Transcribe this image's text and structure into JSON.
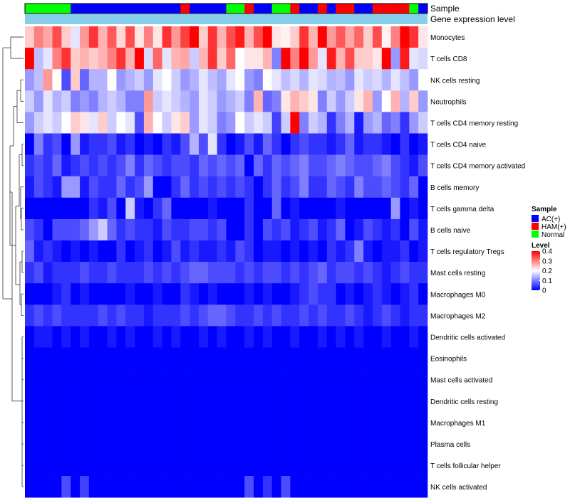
{
  "chart_data": {
    "type": "heatmap",
    "title": "",
    "annotation_tracks": [
      {
        "name": "Sample",
        "label": "Sample"
      },
      {
        "name": "Gene expression level",
        "label": "Gene expression level"
      }
    ],
    "sample_groups": [
      "N",
      "N",
      "N",
      "N",
      "N",
      "A",
      "A",
      "A",
      "A",
      "A",
      "A",
      "A",
      "A",
      "A",
      "A",
      "A",
      "A",
      "H",
      "A",
      "A",
      "A",
      "A",
      "N",
      "N",
      "H",
      "A",
      "A",
      "N",
      "N",
      "H",
      "A",
      "A",
      "H",
      "A",
      "H",
      "H",
      "A",
      "A",
      "H",
      "H",
      "H",
      "H",
      "N",
      "A"
    ],
    "rows": [
      "Monocytes",
      "T cells CD8",
      "NK cells resting",
      "Neutrophils",
      "T cells CD4 memory resting",
      "T cells CD4 naive",
      "T cells CD4 memory activated",
      "B cells memory",
      "T cells gamma delta",
      "B cells naive",
      "T cells regulatory  Tregs",
      "Mast cells resting",
      "Macrophages M0",
      "Macrophages M2",
      "Dendritic cells activated",
      "Eosinophils",
      "Mast cells activated",
      "Dendritic cells resting",
      "Macrophages M1",
      "Plasma cells",
      "T cells follicular helper",
      "NK cells activated"
    ],
    "values": [
      [
        0.24,
        0.3,
        0.27,
        0.34,
        0.24,
        0.18,
        0.28,
        0.36,
        0.26,
        0.33,
        0.23,
        0.34,
        0.22,
        0.3,
        0.22,
        0.36,
        0.28,
        0.35,
        0.4,
        0.24,
        0.36,
        0.26,
        0.34,
        0.38,
        0.26,
        0.34,
        0.4,
        0.22,
        0.21,
        0.24,
        0.36,
        0.26,
        0.42,
        0.28,
        0.33,
        0.27,
        0.32,
        0.24,
        0.34,
        0.21,
        0.3,
        0.42,
        0.36,
        0.22
      ],
      [
        0.42,
        0.15,
        0.18,
        0.3,
        0.36,
        0.24,
        0.26,
        0.24,
        0.26,
        0.3,
        0.36,
        0.26,
        0.4,
        0.17,
        0.32,
        0.18,
        0.26,
        0.27,
        0.16,
        0.26,
        0.36,
        0.24,
        0.32,
        0.2,
        0.22,
        0.22,
        0.26,
        0.1,
        0.4,
        0.3,
        0.4,
        0.28,
        0.18,
        0.38,
        0.26,
        0.34,
        0.24,
        0.24,
        0.22,
        0.4,
        0.12,
        0.38,
        0.18,
        0.17
      ],
      [
        0.12,
        0.15,
        0.28,
        0.2,
        0.06,
        0.24,
        0.08,
        0.14,
        0.14,
        0.2,
        0.12,
        0.14,
        0.16,
        0.12,
        0.18,
        0.2,
        0.16,
        0.12,
        0.14,
        0.18,
        0.15,
        0.13,
        0.18,
        0.2,
        0.12,
        0.1,
        0.2,
        0.18,
        0.15,
        0.17,
        0.14,
        0.18,
        0.17,
        0.14,
        0.15,
        0.12,
        0.18,
        0.16,
        0.17,
        0.14,
        0.18,
        0.15,
        0.12,
        0.2
      ],
      [
        0.16,
        0.12,
        0.18,
        0.14,
        0.16,
        0.1,
        0.12,
        0.1,
        0.14,
        0.16,
        0.14,
        0.1,
        0.1,
        0.28,
        0.16,
        0.18,
        0.16,
        0.14,
        0.12,
        0.18,
        0.16,
        0.12,
        0.14,
        0.16,
        0.1,
        0.26,
        0.08,
        0.1,
        0.22,
        0.26,
        0.24,
        0.22,
        0.1,
        0.16,
        0.12,
        0.16,
        0.22,
        0.26,
        0.12,
        0.2,
        0.26,
        0.14,
        0.24,
        0.12
      ],
      [
        0.12,
        0.16,
        0.18,
        0.16,
        0.2,
        0.24,
        0.22,
        0.18,
        0.24,
        0.16,
        0.2,
        0.18,
        0.06,
        0.26,
        0.2,
        0.16,
        0.22,
        0.24,
        0.12,
        0.18,
        0.16,
        0.1,
        0.12,
        0.2,
        0.16,
        0.18,
        0.16,
        0.05,
        0.16,
        0.42,
        0.1,
        0.16,
        0.14,
        0.04,
        0.1,
        0.14,
        0.02,
        0.12,
        0.14,
        0.08,
        0.1,
        0.04,
        0.12,
        0.16
      ],
      [
        0.0,
        0.1,
        0.04,
        0.06,
        0.0,
        0.12,
        0.02,
        0.04,
        0.04,
        0.06,
        0.02,
        0.04,
        0.0,
        0.02,
        0.0,
        0.04,
        0.02,
        0.06,
        0.14,
        0.06,
        0.18,
        0.04,
        0.0,
        0.02,
        0.06,
        0.02,
        0.08,
        0.04,
        0.0,
        0.04,
        0.06,
        0.04,
        0.04,
        0.02,
        0.04,
        0.08,
        0.02,
        0.04,
        0.04,
        0.02,
        0.0,
        0.04,
        0.0,
        0.02
      ],
      [
        0.04,
        0.06,
        0.04,
        0.08,
        0.02,
        0.04,
        0.06,
        0.04,
        0.06,
        0.04,
        0.06,
        0.1,
        0.04,
        0.08,
        0.06,
        0.04,
        0.06,
        0.06,
        0.04,
        0.08,
        0.06,
        0.08,
        0.06,
        0.08,
        0.0,
        0.08,
        0.04,
        0.08,
        0.06,
        0.08,
        0.1,
        0.06,
        0.06,
        0.08,
        0.1,
        0.08,
        0.06,
        0.06,
        0.08,
        0.1,
        0.06,
        0.04,
        0.02,
        0.06
      ],
      [
        0.02,
        0.06,
        0.04,
        0.02,
        0.12,
        0.12,
        0.02,
        0.06,
        0.04,
        0.04,
        0.08,
        0.04,
        0.06,
        0.12,
        0.0,
        0.0,
        0.04,
        0.08,
        0.04,
        0.06,
        0.04,
        0.06,
        0.04,
        0.06,
        0.04,
        0.0,
        0.04,
        0.08,
        0.04,
        0.06,
        0.1,
        0.04,
        0.04,
        0.08,
        0.06,
        0.04,
        0.1,
        0.06,
        0.06,
        0.08,
        0.06,
        0.04,
        0.08,
        0.0
      ],
      [
        0.0,
        0.0,
        0.0,
        0.0,
        0.0,
        0.0,
        0.0,
        0.04,
        0.02,
        0.06,
        0.0,
        0.16,
        0.02,
        0.0,
        0.04,
        0.08,
        0.0,
        0.0,
        0.0,
        0.0,
        0.02,
        0.0,
        0.0,
        0.0,
        0.04,
        0.0,
        0.0,
        0.08,
        0.0,
        0.02,
        0.0,
        0.0,
        0.0,
        0.0,
        0.02,
        0.0,
        0.0,
        0.0,
        0.0,
        0.0,
        0.12,
        0.0,
        0.02,
        0.0
      ],
      [
        0.06,
        0.04,
        0.0,
        0.06,
        0.06,
        0.06,
        0.08,
        0.12,
        0.16,
        0.08,
        0.04,
        0.06,
        0.04,
        0.04,
        0.02,
        0.06,
        0.04,
        0.04,
        0.06,
        0.06,
        0.04,
        0.06,
        0.0,
        0.0,
        0.04,
        0.0,
        0.06,
        0.04,
        0.06,
        0.02,
        0.04,
        0.06,
        0.02,
        0.04,
        0.08,
        0.0,
        0.02,
        0.06,
        0.04,
        0.02,
        0.04,
        0.0,
        0.06,
        0.02
      ],
      [
        0.08,
        0.02,
        0.04,
        0.02,
        0.0,
        0.02,
        0.0,
        0.02,
        0.0,
        0.0,
        0.04,
        0.0,
        0.02,
        0.04,
        0.0,
        0.02,
        0.06,
        0.02,
        0.04,
        0.02,
        0.02,
        0.04,
        0.02,
        0.06,
        0.04,
        0.0,
        0.02,
        0.02,
        0.0,
        0.02,
        0.0,
        0.02,
        0.0,
        0.04,
        0.02,
        0.04,
        0.1,
        0.02,
        0.0,
        0.02,
        0.02,
        0.04,
        0.0,
        0.02
      ],
      [
        0.04,
        0.06,
        0.02,
        0.04,
        0.04,
        0.04,
        0.06,
        0.04,
        0.04,
        0.06,
        0.04,
        0.04,
        0.04,
        0.06,
        0.04,
        0.06,
        0.04,
        0.06,
        0.08,
        0.08,
        0.06,
        0.06,
        0.06,
        0.04,
        0.06,
        0.04,
        0.06,
        0.06,
        0.04,
        0.06,
        0.04,
        0.06,
        0.08,
        0.04,
        0.06,
        0.06,
        0.04,
        0.06,
        0.04,
        0.02,
        0.04,
        0.06,
        0.04,
        0.04
      ],
      [
        0.0,
        0.0,
        0.0,
        0.02,
        0.04,
        0.0,
        0.02,
        0.0,
        0.0,
        0.0,
        0.0,
        0.02,
        0.0,
        0.0,
        0.02,
        0.0,
        0.0,
        0.04,
        0.02,
        0.0,
        0.02,
        0.0,
        0.0,
        0.0,
        0.02,
        0.0,
        0.02,
        0.0,
        0.0,
        0.02,
        0.04,
        0.06,
        0.04,
        0.04,
        0.0,
        0.02,
        0.0,
        0.02,
        0.04,
        0.02,
        0.0,
        0.02,
        0.04,
        0.0
      ],
      [
        0.04,
        0.06,
        0.04,
        0.06,
        0.04,
        0.04,
        0.04,
        0.04,
        0.06,
        0.04,
        0.06,
        0.04,
        0.04,
        0.02,
        0.04,
        0.04,
        0.04,
        0.06,
        0.04,
        0.06,
        0.08,
        0.08,
        0.06,
        0.04,
        0.04,
        0.06,
        0.04,
        0.06,
        0.04,
        0.04,
        0.06,
        0.04,
        0.06,
        0.04,
        0.04,
        0.06,
        0.04,
        0.02,
        0.04,
        0.06,
        0.04,
        0.02,
        0.04,
        0.04
      ],
      [
        0.0,
        0.02,
        0.02,
        0.0,
        0.02,
        0.0,
        0.02,
        0.0,
        0.0,
        0.02,
        0.0,
        0.02,
        0.0,
        0.0,
        0.02,
        0.0,
        0.02,
        0.0,
        0.0,
        0.02,
        0.0,
        0.02,
        0.0,
        0.0,
        0.02,
        0.0,
        0.02,
        0.0,
        0.0,
        0.02,
        0.0,
        0.0,
        0.02,
        0.0,
        0.02,
        0.0,
        0.02,
        0.0,
        0.0,
        0.02,
        0.0,
        0.0,
        0.02,
        0.0
      ],
      [
        0,
        0,
        0,
        0,
        0,
        0,
        0,
        0,
        0,
        0,
        0,
        0,
        0,
        0,
        0,
        0,
        0,
        0,
        0,
        0,
        0,
        0,
        0,
        0,
        0,
        0,
        0,
        0,
        0,
        0,
        0,
        0,
        0,
        0,
        0,
        0,
        0,
        0,
        0,
        0,
        0,
        0,
        0,
        0
      ],
      [
        0,
        0,
        0,
        0,
        0,
        0,
        0,
        0,
        0,
        0,
        0,
        0,
        0,
        0,
        0,
        0,
        0,
        0,
        0,
        0,
        0,
        0,
        0,
        0,
        0,
        0,
        0,
        0,
        0,
        0,
        0,
        0,
        0,
        0,
        0,
        0,
        0,
        0,
        0,
        0,
        0,
        0,
        0,
        0
      ],
      [
        0,
        0,
        0,
        0,
        0,
        0,
        0,
        0,
        0,
        0,
        0,
        0,
        0,
        0,
        0,
        0,
        0,
        0,
        0,
        0,
        0,
        0,
        0,
        0,
        0,
        0,
        0,
        0,
        0,
        0,
        0,
        0,
        0,
        0,
        0,
        0,
        0,
        0,
        0,
        0,
        0,
        0,
        0,
        0
      ],
      [
        0,
        0,
        0,
        0,
        0,
        0,
        0,
        0,
        0,
        0,
        0,
        0,
        0,
        0,
        0,
        0,
        0,
        0,
        0,
        0,
        0,
        0,
        0,
        0,
        0,
        0,
        0,
        0,
        0,
        0,
        0,
        0,
        0,
        0,
        0,
        0,
        0,
        0,
        0,
        0,
        0,
        0,
        0,
        0
      ],
      [
        0,
        0,
        0,
        0,
        0,
        0,
        0,
        0,
        0,
        0,
        0,
        0,
        0,
        0,
        0,
        0,
        0,
        0,
        0,
        0,
        0,
        0,
        0,
        0,
        0,
        0,
        0,
        0,
        0,
        0,
        0,
        0,
        0,
        0,
        0,
        0,
        0,
        0,
        0,
        0,
        0,
        0,
        0,
        0
      ],
      [
        0,
        0,
        0,
        0,
        0,
        0,
        0,
        0,
        0,
        0,
        0,
        0,
        0,
        0,
        0,
        0,
        0,
        0,
        0,
        0,
        0,
        0,
        0,
        0,
        0,
        0,
        0,
        0,
        0,
        0,
        0,
        0,
        0,
        0,
        0,
        0,
        0,
        0,
        0,
        0,
        0,
        0,
        0,
        0
      ],
      [
        0,
        0,
        0,
        0,
        0.06,
        0,
        0.05,
        0,
        0,
        0,
        0,
        0,
        0,
        0,
        0,
        0,
        0,
        0,
        0,
        0,
        0,
        0,
        0,
        0,
        0.06,
        0,
        0.04,
        0,
        0.06,
        0,
        0,
        0,
        0,
        0,
        0,
        0,
        0,
        0,
        0,
        0,
        0,
        0,
        0,
        0
      ]
    ],
    "color_scale": {
      "min": 0,
      "max": 0.4,
      "low": "#0000ff",
      "mid": "#ffffff",
      "high": "#ff0000"
    },
    "legends": [
      {
        "title": "Sample",
        "entries": [
          {
            "key": "A",
            "label": "AC(+)",
            "color": "#0000ff"
          },
          {
            "key": "H",
            "label": "HAM(+)",
            "color": "#ff0000"
          },
          {
            "key": "N",
            "label": "Normal",
            "color": "#00ff00"
          }
        ]
      },
      {
        "title": "Level",
        "ticks": [
          "0.4",
          "0.3",
          "0.2",
          "0.1",
          "0"
        ],
        "tick_values": [
          0.4,
          0.3,
          0.2,
          0.1,
          0
        ]
      }
    ],
    "gene_track_color": "#87ceeb",
    "row_dendrogram": true,
    "column_dendrogram": false
  }
}
